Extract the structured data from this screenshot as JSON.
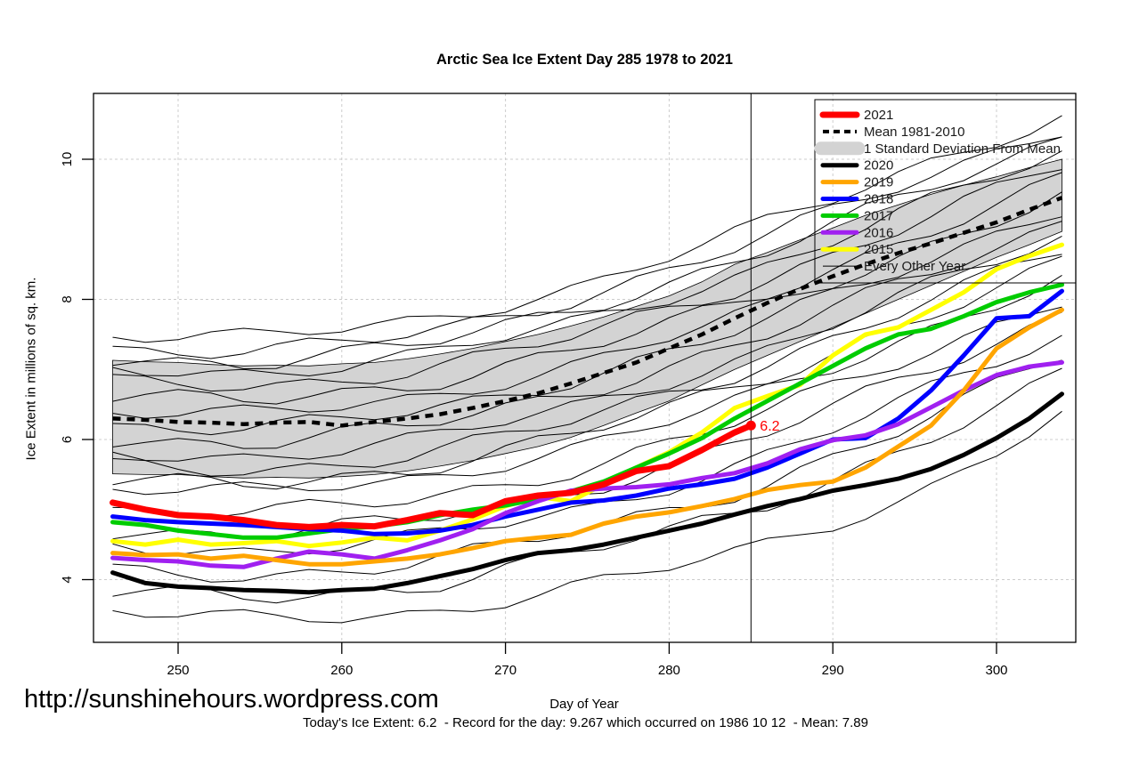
{
  "title": "Arctic Sea Ice Extent Day 285 1978 to 2021",
  "axes": {
    "x_label": "Day of Year",
    "y_label": "Ice Extent in millions of sq. km.",
    "x_ticks": [
      250,
      260,
      270,
      280,
      290,
      300
    ],
    "y_ticks": [
      4,
      6,
      8,
      10
    ]
  },
  "footer": {
    "url": "http://sunshinehours.wordpress.com",
    "caption": "Today's Ice Extent: 6.2  - Record for the day: 9.267 which occurred on 1986 10 12  - Mean: 7.89"
  },
  "annotation": {
    "label": "6.2",
    "day": 285,
    "value": 6.2,
    "color": "#FF0000"
  },
  "marker_day": 285,
  "legend": {
    "items": [
      {
        "label": "2021",
        "color": "#FF0000",
        "type": "line",
        "width": 7
      },
      {
        "label": "Mean 1981-2010",
        "color": "#000000",
        "type": "dashed",
        "width": 4
      },
      {
        "label": "1 Standard Deviation From Mean",
        "color": "#D3D3D3",
        "type": "band"
      },
      {
        "label": "2020",
        "color": "#000000",
        "type": "line",
        "width": 5
      },
      {
        "label": "2019",
        "color": "#FFA500",
        "type": "line",
        "width": 5
      },
      {
        "label": "2018",
        "color": "#0000FF",
        "type": "line",
        "width": 5
      },
      {
        "label": "2017",
        "color": "#00CC00",
        "type": "line",
        "width": 5
      },
      {
        "label": "2016",
        "color": "#A020F0",
        "type": "line",
        "width": 5
      },
      {
        "label": "2015",
        "color": "#FFFF00",
        "type": "line",
        "width": 5
      },
      {
        "label": "Every Other Year",
        "color": "#000000",
        "type": "thin"
      }
    ]
  },
  "chart_data": {
    "type": "line",
    "title": "Arctic Sea Ice Extent Day 285 1978 to 2021",
    "xlabel": "Day of Year",
    "ylabel": "Ice Extent in millions of sq. km.",
    "x_range": [
      244.8,
      304.8
    ],
    "y_range": [
      3.1,
      10.94
    ],
    "grid": "dashed",
    "legend_position": "top-right",
    "x": [
      246,
      248,
      250,
      252,
      254,
      256,
      258,
      260,
      262,
      264,
      266,
      268,
      270,
      272,
      274,
      276,
      278,
      280,
      282,
      284,
      286,
      288,
      290,
      292,
      294,
      296,
      298,
      300,
      302,
      304
    ],
    "band": {
      "name": "1 Standard Deviation From Mean",
      "color": "#D3D3D3",
      "upper": [
        7.13,
        7.11,
        7.1,
        7.07,
        7.05,
        7.06,
        7.05,
        7.08,
        7.1,
        7.15,
        7.22,
        7.3,
        7.4,
        7.5,
        7.62,
        7.75,
        7.9,
        8.05,
        8.25,
        8.5,
        8.67,
        8.85,
        9.02,
        9.2,
        9.35,
        9.5,
        9.63,
        9.75,
        9.88,
        10.0
      ],
      "lower": [
        5.51,
        5.5,
        5.5,
        5.47,
        5.45,
        5.46,
        5.45,
        5.47,
        5.5,
        5.55,
        5.62,
        5.7,
        5.8,
        5.9,
        6.03,
        6.2,
        6.38,
        6.55,
        6.78,
        7.0,
        7.2,
        7.4,
        7.6,
        7.8,
        8.0,
        8.2,
        8.4,
        8.6,
        8.78,
        8.97
      ]
    },
    "mean_series": {
      "name": "Mean 1981-2010",
      "color": "#000000",
      "values": [
        6.3,
        6.28,
        6.25,
        6.24,
        6.22,
        6.24,
        6.25,
        6.2,
        6.25,
        6.3,
        6.36,
        6.45,
        6.55,
        6.66,
        6.8,
        6.95,
        7.1,
        7.3,
        7.5,
        7.73,
        7.95,
        8.15,
        8.33,
        8.5,
        8.66,
        8.8,
        8.95,
        9.1,
        9.28,
        9.45
      ]
    },
    "series": [
      {
        "name": "2015",
        "color": "#FFFF00",
        "width": 5,
        "values": [
          4.55,
          4.5,
          4.57,
          4.5,
          4.52,
          4.55,
          4.48,
          4.53,
          4.6,
          4.56,
          4.7,
          4.86,
          5.05,
          5.18,
          5.12,
          5.36,
          5.6,
          5.82,
          6.1,
          6.45,
          6.62,
          6.78,
          7.2,
          7.5,
          7.6,
          7.85,
          8.1,
          8.43,
          8.62,
          8.78
        ]
      },
      {
        "name": "2017",
        "color": "#00CC00",
        "width": 5,
        "values": [
          4.82,
          4.78,
          4.7,
          4.65,
          4.6,
          4.6,
          4.66,
          4.72,
          4.76,
          4.82,
          4.92,
          5.0,
          5.06,
          5.15,
          5.26,
          5.4,
          5.6,
          5.8,
          6.02,
          6.3,
          6.55,
          6.8,
          7.05,
          7.3,
          7.5,
          7.58,
          7.76,
          7.96,
          8.1,
          8.21
        ]
      },
      {
        "name": "2018",
        "color": "#0000FF",
        "width": 5,
        "values": [
          4.9,
          4.85,
          4.82,
          4.8,
          4.78,
          4.75,
          4.72,
          4.7,
          4.65,
          4.66,
          4.7,
          4.78,
          4.9,
          5.0,
          5.1,
          5.13,
          5.2,
          5.3,
          5.36,
          5.44,
          5.6,
          5.8,
          6.0,
          6.02,
          6.3,
          6.7,
          7.2,
          7.73,
          7.76,
          8.12
        ]
      },
      {
        "name": "2016",
        "color": "#A020F0",
        "width": 5,
        "values": [
          4.31,
          4.28,
          4.26,
          4.2,
          4.18,
          4.3,
          4.4,
          4.36,
          4.3,
          4.42,
          4.56,
          4.72,
          4.95,
          5.12,
          5.27,
          5.3,
          5.32,
          5.36,
          5.45,
          5.52,
          5.66,
          5.86,
          5.99,
          6.06,
          6.22,
          6.46,
          6.7,
          6.92,
          7.04,
          7.1
        ]
      },
      {
        "name": "2019",
        "color": "#FFA500",
        "width": 5,
        "values": [
          4.38,
          4.35,
          4.36,
          4.3,
          4.34,
          4.28,
          4.22,
          4.22,
          4.26,
          4.3,
          4.36,
          4.45,
          4.55,
          4.6,
          4.64,
          4.8,
          4.9,
          4.96,
          5.05,
          5.15,
          5.28,
          5.35,
          5.4,
          5.6,
          5.9,
          6.2,
          6.7,
          7.3,
          7.6,
          7.85
        ]
      },
      {
        "name": "2020",
        "color": "#000000",
        "width": 5,
        "values": [
          4.1,
          3.95,
          3.9,
          3.88,
          3.85,
          3.84,
          3.82,
          3.85,
          3.87,
          3.95,
          4.05,
          4.15,
          4.28,
          4.38,
          4.42,
          4.5,
          4.6,
          4.7,
          4.8,
          4.93,
          5.05,
          5.15,
          5.27,
          5.35,
          5.44,
          5.58,
          5.78,
          6.02,
          6.3,
          6.65
        ]
      },
      {
        "name": "2021",
        "color": "#FF0000",
        "width": 7,
        "x": [
          246,
          248,
          250,
          252,
          254,
          256,
          258,
          260,
          262,
          264,
          266,
          268,
          270,
          272,
          274,
          276,
          278,
          280,
          282,
          284,
          285
        ],
        "values": [
          5.1,
          5.0,
          4.92,
          4.9,
          4.85,
          4.78,
          4.75,
          4.78,
          4.76,
          4.85,
          4.95,
          4.92,
          5.12,
          5.2,
          5.24,
          5.36,
          5.55,
          5.62,
          5.85,
          6.1,
          6.2
        ]
      }
    ],
    "every_other_year_lines": {
      "name": "Every Other Year",
      "x": [
        246,
        255,
        265,
        275,
        285,
        295,
        304
      ],
      "lines": [
        [
          3.55,
          3.42,
          3.52,
          3.92,
          4.42,
          5.2,
          6.35
        ],
        [
          3.8,
          3.75,
          3.9,
          4.4,
          5.0,
          5.9,
          6.9
        ],
        [
          4.1,
          4.05,
          4.25,
          4.7,
          5.3,
          6.2,
          7.2
        ],
        [
          4.5,
          4.4,
          4.6,
          5.0,
          5.7,
          6.6,
          7.5
        ],
        [
          4.7,
          4.65,
          4.85,
          5.3,
          6.0,
          6.9,
          7.8
        ],
        [
          5.0,
          4.95,
          5.15,
          5.6,
          6.3,
          7.2,
          8.0
        ],
        [
          5.3,
          5.25,
          5.45,
          5.9,
          6.6,
          7.5,
          8.3
        ],
        [
          5.4,
          5.35,
          5.6,
          6.1,
          6.8,
          7.7,
          8.5
        ],
        [
          5.6,
          5.55,
          5.8,
          6.3,
          7.0,
          7.9,
          8.7
        ],
        [
          5.8,
          5.75,
          6.0,
          6.5,
          7.2,
          8.1,
          8.9
        ],
        [
          6.0,
          5.95,
          6.2,
          6.7,
          7.4,
          8.3,
          9.1
        ],
        [
          6.2,
          6.15,
          6.4,
          6.9,
          7.6,
          8.5,
          9.3
        ],
        [
          6.4,
          6.35,
          6.6,
          7.1,
          7.8,
          8.7,
          9.5
        ],
        [
          6.6,
          6.55,
          6.8,
          7.3,
          8.0,
          8.9,
          9.7
        ],
        [
          6.8,
          6.75,
          7.0,
          7.5,
          8.2,
          9.1,
          9.9
        ],
        [
          7.0,
          6.95,
          7.2,
          7.7,
          8.4,
          9.3,
          10.1
        ],
        [
          7.15,
          7.1,
          7.35,
          7.9,
          8.6,
          9.5,
          10.3
        ],
        [
          7.3,
          7.25,
          7.5,
          8.05,
          8.8,
          9.7,
          10.45
        ],
        [
          7.5,
          7.45,
          7.7,
          8.2,
          9.0,
          9.9,
          10.6
        ]
      ]
    }
  }
}
